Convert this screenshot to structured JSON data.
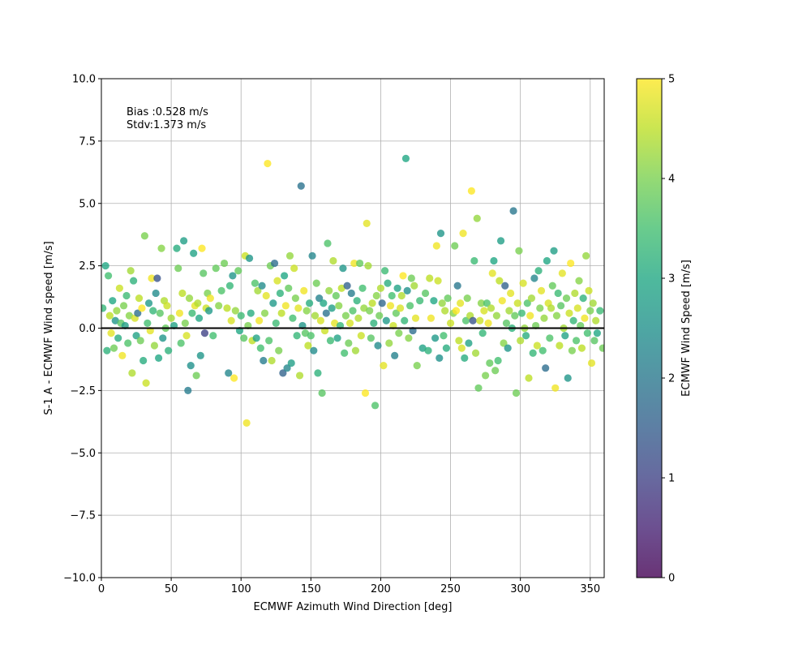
{
  "chart_data": {
    "type": "scatter",
    "xlabel": "ECMWF Azimuth Wind Direction [deg]",
    "ylabel": "S-1 A - ECMWF Wind speed [m/s]",
    "xlim": [
      0,
      360
    ],
    "ylim": [
      -10,
      10
    ],
    "xticks": [
      0,
      50,
      100,
      150,
      200,
      250,
      300,
      350
    ],
    "xtick_labels": [
      "0",
      "50",
      "100",
      "150",
      "200",
      "250",
      "300",
      "350"
    ],
    "yticks": [
      -10,
      -7.5,
      -5,
      -2.5,
      0,
      2.5,
      5,
      7.5,
      10
    ],
    "ytick_labels": [
      "−10.0",
      "−7.5",
      "−5.0",
      "−2.5",
      "0.0",
      "2.5",
      "5.0",
      "7.5",
      "10.0"
    ],
    "grid": true,
    "reference_line_y": 0,
    "annotations": [
      "Bias :0.528 m/s",
      "Stdv:1.373 m/s"
    ],
    "colorbar": {
      "label": "ECMWF Wind Speed [m/s]",
      "range": [
        0,
        5
      ],
      "ticks": [
        "0",
        "1",
        "2",
        "3",
        "4",
        "5"
      ],
      "colormap": "viridis"
    },
    "points": [
      [
        1,
        0.8,
        3.3
      ],
      [
        3,
        2.5,
        3.0
      ],
      [
        4,
        -0.9,
        3.2
      ],
      [
        5,
        2.1,
        3.5
      ],
      [
        6,
        0.5,
        4.5
      ],
      [
        7,
        -0.2,
        4.8
      ],
      [
        8,
        1.1,
        3.0
      ],
      [
        9,
        -0.8,
        3.9
      ],
      [
        10,
        0.3,
        2.6
      ],
      [
        11,
        0.7,
        4.2
      ],
      [
        12,
        -0.4,
        3.1
      ],
      [
        13,
        1.6,
        4.6
      ],
      [
        14,
        0.2,
        3.7
      ],
      [
        15,
        -1.1,
        4.9
      ],
      [
        16,
        0.9,
        4.0
      ],
      [
        17,
        0.1,
        2.8
      ],
      [
        18,
        1.3,
        3.4
      ],
      [
        19,
        -0.6,
        3.6
      ],
      [
        20,
        0.5,
        4.1
      ],
      [
        21,
        2.3,
        4.3
      ],
      [
        22,
        -1.8,
        4.4
      ],
      [
        23,
        1.9,
        3.2
      ],
      [
        24,
        0.4,
        4.7
      ],
      [
        25,
        -0.3,
        2.9
      ],
      [
        26,
        0.6,
        1.8
      ],
      [
        27,
        1.2,
        4.5
      ],
      [
        28,
        -0.5,
        3.9
      ],
      [
        29,
        0.8,
        5.0
      ],
      [
        30,
        -1.3,
        3.1
      ],
      [
        31,
        3.7,
        4.0
      ],
      [
        32,
        -2.2,
        4.6
      ],
      [
        33,
        0.2,
        3.5
      ],
      [
        34,
        1.0,
        2.7
      ],
      [
        35,
        -0.1,
        4.8
      ],
      [
        36,
        2.0,
        4.9
      ],
      [
        37,
        0.7,
        3.3
      ],
      [
        38,
        -0.7,
        4.2
      ],
      [
        39,
        1.4,
        2.4
      ],
      [
        40,
        2.0,
        1.3
      ],
      [
        41,
        -1.2,
        3.0
      ],
      [
        42,
        0.6,
        3.7
      ],
      [
        43,
        3.2,
        4.1
      ],
      [
        44,
        -0.4,
        2.6
      ],
      [
        45,
        1.1,
        4.4
      ],
      [
        46,
        0.0,
        3.8
      ],
      [
        47,
        0.9,
        4.6
      ],
      [
        48,
        -0.9,
        3.2
      ],
      [
        50,
        0.4,
        4.3
      ],
      [
        52,
        0.1,
        2.9
      ],
      [
        54,
        3.2,
        3.1
      ],
      [
        55,
        2.4,
        3.9
      ],
      [
        56,
        0.6,
        4.9
      ],
      [
        57,
        -0.6,
        3.6
      ],
      [
        58,
        1.4,
        4.5
      ],
      [
        59,
        3.5,
        2.8
      ],
      [
        60,
        0.2,
        4.0
      ],
      [
        61,
        -0.3,
        4.7
      ],
      [
        62,
        -2.5,
        2.1
      ],
      [
        63,
        1.2,
        4.2
      ],
      [
        64,
        -1.5,
        2.5
      ],
      [
        65,
        0.6,
        3.4
      ],
      [
        66,
        3.0,
        2.9
      ],
      [
        67,
        0.9,
        4.8
      ],
      [
        68,
        -1.9,
        3.9
      ],
      [
        69,
        1.0,
        4.4
      ],
      [
        70,
        0.4,
        3.0
      ],
      [
        71,
        -1.1,
        2.6
      ],
      [
        72,
        3.2,
        5.0
      ],
      [
        73,
        2.2,
        3.7
      ],
      [
        74,
        -0.2,
        1.0
      ],
      [
        75,
        0.8,
        4.6
      ],
      [
        76,
        1.4,
        4.0
      ],
      [
        77,
        0.7,
        2.7
      ],
      [
        78,
        1.2,
        4.9
      ],
      [
        80,
        -0.3,
        3.5
      ],
      [
        82,
        2.4,
        3.8
      ],
      [
        84,
        0.9,
        4.1
      ],
      [
        86,
        1.5,
        3.6
      ],
      [
        88,
        2.6,
        3.9
      ],
      [
        90,
        0.8,
        4.5
      ],
      [
        91,
        -1.8,
        2.3
      ],
      [
        92,
        1.7,
        3.3
      ],
      [
        93,
        0.3,
        4.7
      ],
      [
        94,
        2.1,
        2.6
      ],
      [
        95,
        -2.0,
        5.0
      ],
      [
        96,
        0.7,
        4.2
      ],
      [
        98,
        2.3,
        3.8
      ],
      [
        99,
        -0.1,
        3.0
      ],
      [
        100,
        0.5,
        3.4
      ],
      [
        102,
        -0.4,
        3.7
      ],
      [
        103,
        2.9,
        4.6
      ],
      [
        104,
        -3.8,
        4.9
      ],
      [
        105,
        0.1,
        4.0
      ],
      [
        106,
        2.8,
        2.6
      ],
      [
        107,
        0.6,
        3.1
      ],
      [
        108,
        -0.5,
        4.5
      ],
      [
        110,
        1.8,
        3.6
      ],
      [
        111,
        -0.4,
        2.9
      ],
      [
        112,
        1.5,
        4.3
      ],
      [
        113,
        0.3,
        4.9
      ],
      [
        114,
        -0.8,
        3.5
      ],
      [
        115,
        1.7,
        2.4
      ],
      [
        116,
        -1.3,
        2.1
      ],
      [
        117,
        0.6,
        4.1
      ],
      [
        118,
        1.3,
        4.8
      ],
      [
        119,
        6.6,
        5.0
      ],
      [
        120,
        -0.5,
        3.6
      ],
      [
        121,
        2.5,
        3.9
      ],
      [
        122,
        -1.3,
        4.4
      ],
      [
        123,
        1.0,
        2.7
      ],
      [
        124,
        2.6,
        1.8
      ],
      [
        125,
        0.2,
        3.4
      ],
      [
        126,
        1.9,
        4.7
      ],
      [
        127,
        -0.9,
        4.0
      ],
      [
        128,
        1.4,
        3.2
      ],
      [
        129,
        0.6,
        4.5
      ],
      [
        130,
        -1.8,
        1.6
      ],
      [
        131,
        2.1,
        3.0
      ],
      [
        132,
        0.9,
        4.9
      ],
      [
        133,
        -1.6,
        2.3
      ],
      [
        134,
        1.6,
        3.8
      ],
      [
        135,
        2.9,
        4.2
      ],
      [
        136,
        -1.4,
        2.8
      ],
      [
        137,
        0.4,
        3.5
      ],
      [
        138,
        2.4,
        4.6
      ],
      [
        139,
        1.2,
        4.0
      ],
      [
        140,
        -0.3,
        3.3
      ],
      [
        141,
        0.8,
        4.8
      ],
      [
        142,
        -1.9,
        4.4
      ],
      [
        143,
        5.7,
        1.9
      ],
      [
        144,
        0.1,
        2.6
      ],
      [
        145,
        1.5,
        4.9
      ],
      [
        146,
        -0.2,
        3.7
      ],
      [
        147,
        0.7,
        4.1
      ],
      [
        148,
        -0.7,
        4.5
      ],
      [
        149,
        1.0,
        3.1
      ],
      [
        150,
        -0.3,
        3.6
      ],
      [
        151,
        2.9,
        2.3
      ],
      [
        152,
        -0.9,
        2.4
      ],
      [
        153,
        0.5,
        4.3
      ],
      [
        154,
        1.8,
        3.9
      ],
      [
        155,
        -1.8,
        3.2
      ],
      [
        156,
        1.2,
        2.2
      ],
      [
        157,
        0.3,
        4.7
      ],
      [
        158,
        -2.6,
        3.7
      ],
      [
        159,
        1.0,
        3.0
      ],
      [
        160,
        -0.1,
        4.6
      ],
      [
        161,
        0.6,
        1.9
      ],
      [
        162,
        3.4,
        3.6
      ],
      [
        163,
        1.5,
        4.2
      ],
      [
        164,
        -0.5,
        3.4
      ],
      [
        165,
        0.8,
        2.8
      ],
      [
        166,
        2.7,
        4.4
      ],
      [
        167,
        0.2,
        4.8
      ],
      [
        168,
        1.3,
        3.8
      ],
      [
        169,
        -0.4,
        2.9
      ],
      [
        170,
        0.9,
        4.1
      ],
      [
        171,
        0.1,
        3.3
      ],
      [
        172,
        1.6,
        4.5
      ],
      [
        173,
        2.4,
        2.6
      ],
      [
        174,
        -1.0,
        3.5
      ],
      [
        175,
        0.5,
        4.0
      ],
      [
        176,
        1.7,
        1.6
      ],
      [
        177,
        -0.6,
        3.9
      ],
      [
        178,
        0.2,
        4.7
      ],
      [
        179,
        1.4,
        2.1
      ],
      [
        180,
        0.7,
        3.6
      ],
      [
        181,
        2.6,
        4.9
      ],
      [
        182,
        -0.9,
        4.3
      ],
      [
        183,
        1.1,
        3.2
      ],
      [
        184,
        0.4,
        4.4
      ],
      [
        185,
        2.6,
        3.8
      ],
      [
        186,
        -0.3,
        4.6
      ],
      [
        187,
        1.6,
        3.5
      ],
      [
        188,
        0.8,
        4.2
      ],
      [
        189,
        -2.6,
        5.0
      ],
      [
        190,
        4.2,
        4.8
      ],
      [
        191,
        2.5,
        4.3
      ],
      [
        192,
        0.7,
        4.0
      ],
      [
        193,
        -0.4,
        3.7
      ],
      [
        194,
        1.0,
        4.5
      ],
      [
        195,
        0.2,
        3.2
      ],
      [
        196,
        -3.1,
        3.6
      ],
      [
        197,
        1.3,
        4.1
      ],
      [
        198,
        -0.7,
        2.4
      ],
      [
        199,
        0.5,
        3.9
      ],
      [
        200,
        1.6,
        4.4
      ],
      [
        201,
        1.0,
        1.7
      ],
      [
        202,
        -1.5,
        4.8
      ],
      [
        203,
        2.3,
        3.4
      ],
      [
        204,
        0.3,
        2.7
      ],
      [
        205,
        1.8,
        3.1
      ],
      [
        206,
        -0.6,
        4.2
      ],
      [
        207,
        0.9,
        4.9
      ],
      [
        208,
        1.3,
        3.5
      ],
      [
        209,
        0.1,
        4.6
      ],
      [
        210,
        -1.1,
        2.2
      ],
      [
        211,
        0.6,
        3.8
      ],
      [
        212,
        1.6,
        2.9
      ],
      [
        213,
        -0.2,
        4.0
      ],
      [
        214,
        0.8,
        4.7
      ],
      [
        215,
        1.3,
        4.4
      ],
      [
        216,
        2.1,
        5.0
      ],
      [
        217,
        0.3,
        3.3
      ],
      [
        218,
        6.8,
        3.0
      ],
      [
        219,
        1.5,
        2.5
      ],
      [
        220,
        -0.4,
        4.1
      ],
      [
        221,
        0.9,
        3.6
      ],
      [
        222,
        2.0,
        3.9
      ],
      [
        223,
        -0.1,
        1.8
      ],
      [
        224,
        1.7,
        4.3
      ],
      [
        225,
        0.4,
        4.8
      ],
      [
        226,
        -1.5,
        4.0
      ],
      [
        228,
        1.1,
        3.4
      ],
      [
        230,
        -0.8,
        2.9
      ],
      [
        232,
        1.4,
        3.7
      ],
      [
        234,
        -0.9,
        3.2
      ],
      [
        235,
        2.0,
        4.5
      ],
      [
        236,
        0.4,
        4.9
      ],
      [
        238,
        1.1,
        3.0
      ],
      [
        239,
        -0.4,
        2.7
      ],
      [
        240,
        3.3,
        4.9
      ],
      [
        241,
        1.9,
        4.6
      ],
      [
        242,
        -1.2,
        2.5
      ],
      [
        243,
        3.8,
        2.6
      ],
      [
        244,
        1.0,
        4.2
      ],
      [
        245,
        -0.3,
        3.5
      ],
      [
        246,
        0.7,
        4.4
      ],
      [
        247,
        -0.8,
        3.1
      ],
      [
        248,
        1.2,
        3.8
      ],
      [
        250,
        0.2,
        4.6
      ],
      [
        252,
        0.6,
        4.1
      ],
      [
        253,
        3.3,
        3.9
      ],
      [
        254,
        0.7,
        5.0
      ],
      [
        255,
        1.7,
        2.0
      ],
      [
        256,
        -0.5,
        4.5
      ],
      [
        257,
        1.0,
        4.8
      ],
      [
        258,
        -0.8,
        4.7
      ],
      [
        259,
        3.8,
        4.9
      ],
      [
        260,
        -1.2,
        3.1
      ],
      [
        261,
        0.3,
        3.6
      ],
      [
        262,
        1.2,
        4.0
      ],
      [
        263,
        -0.6,
        2.9
      ],
      [
        264,
        0.5,
        4.4
      ],
      [
        265,
        5.5,
        5.0
      ],
      [
        266,
        0.3,
        1.3
      ],
      [
        267,
        2.7,
        3.4
      ],
      [
        268,
        -1.0,
        4.3
      ],
      [
        269,
        4.4,
        4.2
      ],
      [
        270,
        -2.4,
        3.8
      ],
      [
        271,
        0.3,
        4.6
      ],
      [
        272,
        1.0,
        4.1
      ],
      [
        273,
        -0.2,
        3.3
      ],
      [
        274,
        0.7,
        4.7
      ],
      [
        275,
        -1.9,
        4.0
      ],
      [
        276,
        1.0,
        3.6
      ],
      [
        277,
        0.2,
        4.9
      ],
      [
        278,
        -1.4,
        3.8
      ],
      [
        279,
        0.8,
        4.4
      ],
      [
        280,
        2.2,
        4.8
      ],
      [
        281,
        2.7,
        3.0
      ],
      [
        282,
        -1.7,
        3.9
      ],
      [
        283,
        0.5,
        4.2
      ],
      [
        284,
        -1.3,
        3.5
      ],
      [
        285,
        1.9,
        4.5
      ],
      [
        286,
        3.5,
        2.8
      ],
      [
        287,
        1.1,
        4.9
      ],
      [
        288,
        -0.6,
        4.1
      ],
      [
        289,
        1.7,
        1.6
      ],
      [
        290,
        0.2,
        3.7
      ],
      [
        291,
        -0.8,
        2.6
      ],
      [
        292,
        0.7,
        4.3
      ],
      [
        293,
        1.4,
        4.8
      ],
      [
        294,
        0.0,
        3.2
      ],
      [
        295,
        4.7,
        2.0
      ],
      [
        296,
        0.5,
        3.8
      ],
      [
        297,
        -2.6,
        3.9
      ],
      [
        298,
        1.0,
        4.6
      ],
      [
        299,
        3.1,
        4.0
      ],
      [
        300,
        -0.5,
        4.4
      ],
      [
        301,
        0.6,
        3.4
      ],
      [
        302,
        1.8,
        4.7
      ],
      [
        303,
        0.0,
        4.2
      ],
      [
        304,
        -0.3,
        3.1
      ],
      [
        305,
        1.0,
        3.6
      ],
      [
        306,
        -2.0,
        4.5
      ],
      [
        307,
        0.5,
        4.9
      ],
      [
        308,
        1.2,
        4.3
      ],
      [
        309,
        -1.0,
        3.3
      ],
      [
        310,
        2.0,
        2.3
      ],
      [
        311,
        0.1,
        3.9
      ],
      [
        312,
        -0.7,
        4.6
      ],
      [
        313,
        2.3,
        3.2
      ],
      [
        314,
        0.8,
        4.0
      ],
      [
        315,
        1.5,
        4.8
      ],
      [
        316,
        -0.9,
        3.5
      ],
      [
        317,
        0.4,
        4.2
      ],
      [
        318,
        -1.6,
        1.8
      ],
      [
        319,
        2.7,
        3.0
      ],
      [
        320,
        1.0,
        4.7
      ],
      [
        321,
        -0.4,
        3.6
      ],
      [
        322,
        0.8,
        4.4
      ],
      [
        323,
        1.7,
        3.8
      ],
      [
        324,
        3.1,
        2.8
      ],
      [
        325,
        -2.4,
        4.9
      ],
      [
        326,
        0.5,
        4.1
      ],
      [
        327,
        1.4,
        3.4
      ],
      [
        328,
        -0.7,
        4.5
      ],
      [
        329,
        0.9,
        3.7
      ],
      [
        330,
        2.2,
        4.8
      ],
      [
        331,
        0.0,
        4.3
      ],
      [
        332,
        -0.3,
        2.9
      ],
      [
        333,
        1.2,
        3.9
      ],
      [
        334,
        -2.0,
        2.6
      ],
      [
        335,
        0.6,
        4.6
      ],
      [
        336,
        2.6,
        5.0
      ],
      [
        337,
        -0.9,
        4.0
      ],
      [
        338,
        0.3,
        3.3
      ],
      [
        339,
        1.4,
        4.4
      ],
      [
        340,
        -0.5,
        3.6
      ],
      [
        341,
        0.8,
        4.7
      ],
      [
        342,
        1.9,
        4.1
      ],
      [
        343,
        0.1,
        3.8
      ],
      [
        344,
        -0.8,
        4.5
      ],
      [
        345,
        1.2,
        3.2
      ],
      [
        346,
        0.4,
        4.9
      ],
      [
        347,
        2.9,
        4.2
      ],
      [
        348,
        -0.2,
        3.5
      ],
      [
        349,
        1.5,
        4.6
      ],
      [
        350,
        0.7,
        4.0
      ],
      [
        351,
        -1.4,
        4.8
      ],
      [
        352,
        1.0,
        4.3
      ],
      [
        353,
        -0.5,
        3.7
      ],
      [
        354,
        0.3,
        4.4
      ],
      [
        355,
        -0.2,
        3.0
      ],
      [
        357,
        0.7,
        3.4
      ],
      [
        359,
        -0.8,
        3.9
      ]
    ]
  }
}
